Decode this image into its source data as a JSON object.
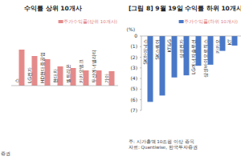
{
  "chart_data": [
    {
      "type": "bar",
      "title": "수익률 상위 10개사",
      "categories": [
        "스",
        "LG전자",
        "HD현대중공업",
        "현대차",
        "셀트리온",
        "카카오뱅크",
        "두산에너빌리티",
        "기아"
      ],
      "series": [
        {
          "name": "주가수익률(상위 10개사)",
          "color": "#e58a8a",
          "values": [
            4.5,
            3.7,
            3.3,
            2.4,
            2.2,
            1.9,
            1.9,
            1.8
          ]
        }
      ],
      "ylim": [
        0,
        6
      ],
      "tick_labels": "x",
      "grid": false,
      "legend": "top-right",
      "notes": [
        "증권"
      ]
    },
    {
      "type": "bar",
      "title": "[그림 8] 9월 19일 수익률 하위 10개사",
      "categories": [
        "SK하이닉스",
        "SK스퀘어",
        "KT&G",
        "삼성전자",
        "LG에너지솔루션",
        "삼성바이오로직스",
        "카카오",
        "KT"
      ],
      "series": [
        {
          "name": "주가수익률(하위 10개사)",
          "color": "#4a78c8",
          "values": [
            -6.2,
            -5.6,
            -3.9,
            -3.7,
            -2.8,
            -2.7,
            -1.4,
            -0.9
          ]
        }
      ],
      "y_label": "(%)",
      "ylim": [
        -7,
        0
      ],
      "yticks": [
        0,
        {
          "value": -1,
          "label": "(1)"
        },
        {
          "value": -2,
          "label": "(2)"
        },
        {
          "value": -3,
          "label": "(3)"
        },
        {
          "value": -4,
          "label": "(4)"
        },
        {
          "value": -5,
          "label": "(5)"
        },
        {
          "value": -6,
          "label": "(6)"
        },
        {
          "value": -7,
          "label": "(7)"
        }
      ],
      "grid": false,
      "legend": "top-right",
      "notes": [
        "주: 시가총액 10조원 이상 종목",
        "자료: Quantiwise, 한국투자증권"
      ]
    }
  ]
}
